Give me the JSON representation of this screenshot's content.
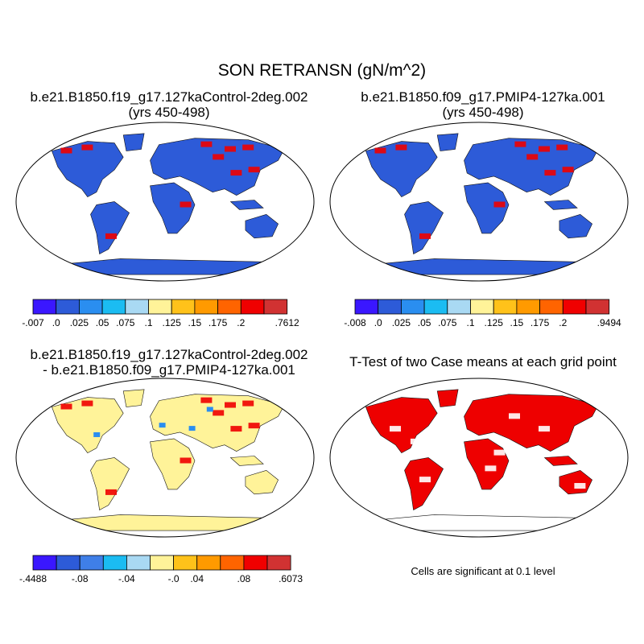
{
  "figure": {
    "title": "SON RETRANSN (gN/m^2)"
  },
  "panels": [
    {
      "title_lines": [
        "b.e21.B1850.f19_g17.127kaControl-2deg.002",
        "(yrs 450-498)"
      ],
      "colorbar": {
        "labels": [
          "-.007",
          ".0",
          ".025",
          ".05",
          ".075",
          ".1",
          ".125",
          ".15",
          ".175",
          ".2",
          ".7612"
        ],
        "colors": [
          "#3a17ff",
          "#2d5bd8",
          "#2a8ef0",
          "#1bbcf2",
          "#a9d9f3",
          "#fff399",
          "#ffc21a",
          "#ff9a00",
          "#ff6400",
          "#f00000",
          "#d13232"
        ]
      },
      "dominant_color": "#2d5bd8",
      "hotspot_color": "#f00000"
    },
    {
      "title_lines": [
        "b.e21.B1850.f09_g17.PMIP4-127ka.001",
        "(yrs 450-498)"
      ],
      "colorbar": {
        "labels": [
          "-.008",
          ".0",
          ".025",
          ".05",
          ".075",
          ".1",
          ".125",
          ".15",
          ".175",
          ".2",
          ".9494"
        ],
        "colors": [
          "#3a17ff",
          "#2d5bd8",
          "#2a8ef0",
          "#1bbcf2",
          "#a9d9f3",
          "#fff399",
          "#ffc21a",
          "#ff9a00",
          "#ff6400",
          "#f00000",
          "#d13232"
        ]
      },
      "dominant_color": "#2d5bd8",
      "hotspot_color": "#f00000"
    },
    {
      "title_lines": [
        "b.e21.B1850.f19_g17.127kaControl-2deg.002",
        "- b.e21.B1850.f09_g17.PMIP4-127ka.001"
      ],
      "colorbar": {
        "labels": [
          "-.4488",
          "-.08",
          "-.04",
          "-.0",
          ".04",
          ".08",
          ".6073"
        ],
        "colors": [
          "#3a17ff",
          "#2d5bd8",
          "#3f7fe8",
          "#1bbcf2",
          "#a9d9f3",
          "#fff399",
          "#ffc21a",
          "#ff9a00",
          "#ff6400",
          "#f00000",
          "#d13232"
        ]
      },
      "dominant_color": "#fff399",
      "hotspot_color": "#f00000"
    },
    {
      "title_lines": [
        "T-Test of two Case means at each grid point"
      ],
      "caption": "Cells are significant at 0.1 level",
      "dominant_color": "#ee0000"
    }
  ]
}
